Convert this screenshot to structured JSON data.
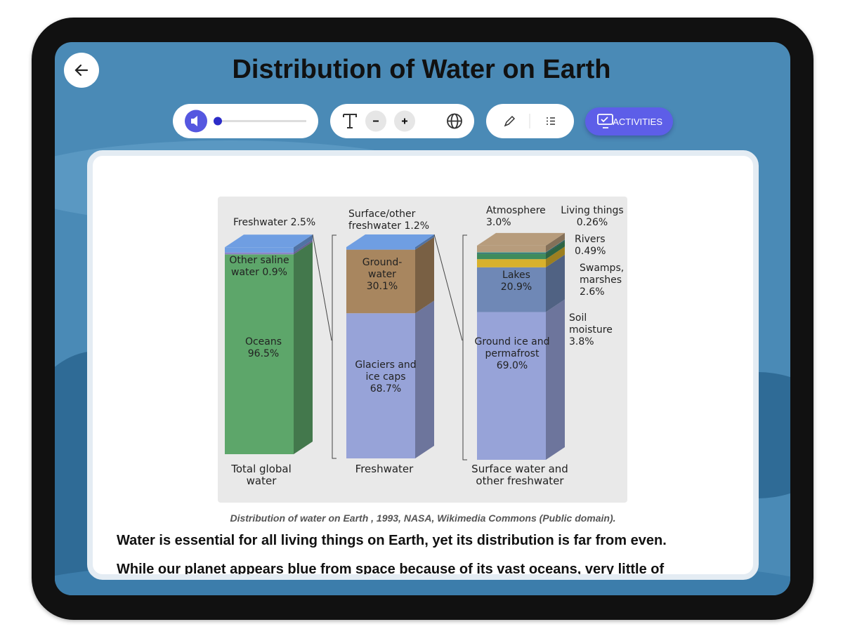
{
  "header": {
    "title": "Distribution of Water on Earth"
  },
  "toolbar": {
    "activities": "ACTIVITIES"
  },
  "figure": {
    "columns": [
      {
        "label": "Total global water",
        "segments": [
          {
            "name": "Oceans",
            "value": 96.5,
            "value_label": "96.5%",
            "color": "#5da66a"
          },
          {
            "name": "Other saline water",
            "value": 0.9,
            "value_label": "0.9%",
            "color": "#8c86c9"
          },
          {
            "name": "Freshwater",
            "value": 2.5,
            "value_label": "2.5%",
            "color": "#6f9ee2"
          }
        ]
      },
      {
        "label": "Freshwater",
        "segments": [
          {
            "name": "Glaciers and ice caps",
            "value": 68.7,
            "value_label": "68.7%",
            "color": "#97a3d8"
          },
          {
            "name": "Ground-water",
            "value": 30.1,
            "value_label": "30.1%",
            "color": "#a8865f"
          },
          {
            "name": "Surface/other freshwater",
            "value": 1.2,
            "value_label": "1.2%",
            "color": "#6f9ee2"
          }
        ]
      },
      {
        "label": "Surface water and other freshwater",
        "segments": [
          {
            "name": "Ground ice and permafrost",
            "value": 69.0,
            "value_label": "69.0%",
            "color": "#97a3d8"
          },
          {
            "name": "Lakes",
            "value": 20.9,
            "value_label": "20.9%",
            "color": "#6f88b6"
          },
          {
            "name": "Soil moisture",
            "value": 3.8,
            "value_label": "3.8%",
            "color": "#d8b12c"
          },
          {
            "name": "Swamps, marshes",
            "value": 2.6,
            "value_label": "2.6%",
            "color": "#3f8b5c"
          },
          {
            "name": "Rivers",
            "value": 0.49,
            "value_label": "0.49%",
            "color": "#2f6f7c"
          },
          {
            "name": "Living things",
            "value": 0.26,
            "value_label": "0.26%",
            "color": "#7fb48a"
          },
          {
            "name": "Atmosphere",
            "value": 3.0,
            "value_label": "3.0%",
            "color": "#b79c7c"
          }
        ]
      }
    ]
  },
  "caption": "Distribution of water on Earth , 1993, NASA, Wikimedia Commons (Public domain).",
  "paragraphs": [
    "Water is essential for all living things on Earth, yet its distribution is far from even.",
    "While our planet appears blue from space because of its vast oceans, very little of"
  ]
}
